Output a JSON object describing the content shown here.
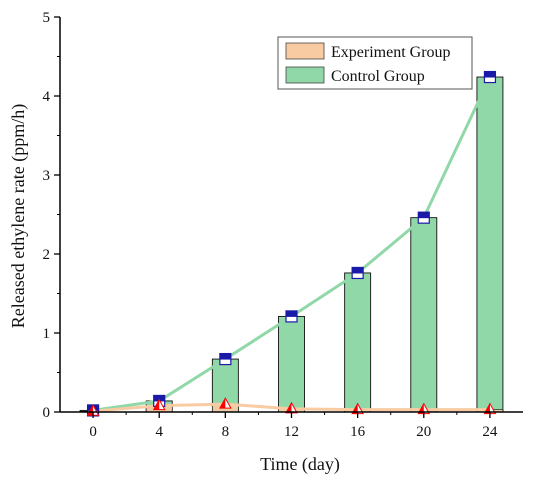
{
  "chart_data": {
    "type": "bar",
    "x": [
      0,
      4,
      8,
      12,
      16,
      20,
      24
    ],
    "xlabel": "Time (day)",
    "ylabel": "Released ethylene rate (ppm/h)",
    "xlim": [
      -2,
      26
    ],
    "ylim": [
      0,
      5
    ],
    "x_ticks": [
      0,
      4,
      8,
      12,
      16,
      20,
      24
    ],
    "y_ticks": [
      0,
      1,
      2,
      3,
      4,
      5
    ],
    "grid": false,
    "legend_position": "top-right",
    "series": [
      {
        "name": "Experiment Group",
        "values": [
          0.01,
          0.08,
          0.1,
          0.04,
          0.03,
          0.03,
          0.03
        ],
        "bar_color": "#f8cba3",
        "line_color": "#f8cba3",
        "marker": "triangle",
        "marker_color": "#ff0000"
      },
      {
        "name": "Control Group",
        "values": [
          0.02,
          0.14,
          0.67,
          1.21,
          1.76,
          2.46,
          4.24
        ],
        "bar_color": "#90d8a8",
        "line_color": "#90d8a8",
        "marker": "square",
        "marker_color": "#1a1aa8"
      }
    ]
  }
}
